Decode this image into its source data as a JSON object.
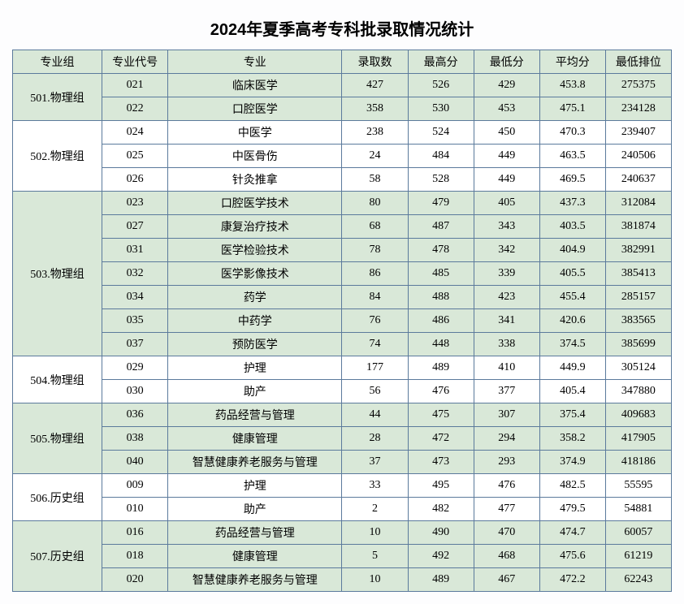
{
  "title": "2024年夏季高考专科批录取情况统计",
  "headers": [
    "专业组",
    "专业代号",
    "专业",
    "录取数",
    "最高分",
    "最低分",
    "平均分",
    "最低排位"
  ],
  "colors": {
    "header_bg": "#d9e8d8",
    "border": "#5b7a9c",
    "row_green": "#d9e8d8",
    "row_white": "#ffffff"
  },
  "groups": [
    {
      "name": "501.物理组",
      "rows": [
        {
          "code": "021",
          "major": "临床医学",
          "count": 427,
          "max": 526,
          "min": 429,
          "avg": "453.8",
          "rank": 275375,
          "bg": "green"
        },
        {
          "code": "022",
          "major": "口腔医学",
          "count": 358,
          "max": 530,
          "min": 453,
          "avg": "475.1",
          "rank": 234128,
          "bg": "green"
        }
      ]
    },
    {
      "name": "502.物理组",
      "rows": [
        {
          "code": "024",
          "major": "中医学",
          "count": 238,
          "max": 524,
          "min": 450,
          "avg": "470.3",
          "rank": 239407,
          "bg": "white"
        },
        {
          "code": "025",
          "major": "中医骨伤",
          "count": 24,
          "max": 484,
          "min": 449,
          "avg": "463.5",
          "rank": 240506,
          "bg": "white"
        },
        {
          "code": "026",
          "major": "针灸推拿",
          "count": 58,
          "max": 528,
          "min": 449,
          "avg": "469.5",
          "rank": 240637,
          "bg": "white"
        }
      ]
    },
    {
      "name": "503.物理组",
      "rows": [
        {
          "code": "023",
          "major": "口腔医学技术",
          "count": 80,
          "max": 479,
          "min": 405,
          "avg": "437.3",
          "rank": 312084,
          "bg": "green"
        },
        {
          "code": "027",
          "major": "康复治疗技术",
          "count": 68,
          "max": 487,
          "min": 343,
          "avg": "403.5",
          "rank": 381874,
          "bg": "green"
        },
        {
          "code": "031",
          "major": "医学检验技术",
          "count": 78,
          "max": 478,
          "min": 342,
          "avg": "404.9",
          "rank": 382991,
          "bg": "green"
        },
        {
          "code": "032",
          "major": "医学影像技术",
          "count": 86,
          "max": 485,
          "min": 339,
          "avg": "405.5",
          "rank": 385413,
          "bg": "green"
        },
        {
          "code": "034",
          "major": "药学",
          "count": 84,
          "max": 488,
          "min": 423,
          "avg": "455.4",
          "rank": 285157,
          "bg": "green"
        },
        {
          "code": "035",
          "major": "中药学",
          "count": 76,
          "max": 486,
          "min": 341,
          "avg": "420.6",
          "rank": 383565,
          "bg": "green"
        },
        {
          "code": "037",
          "major": "预防医学",
          "count": 74,
          "max": 448,
          "min": 338,
          "avg": "374.5",
          "rank": 385699,
          "bg": "green"
        }
      ]
    },
    {
      "name": "504.物理组",
      "rows": [
        {
          "code": "029",
          "major": "护理",
          "count": 177,
          "max": 489,
          "min": 410,
          "avg": "449.9",
          "rank": 305124,
          "bg": "white"
        },
        {
          "code": "030",
          "major": "助产",
          "count": 56,
          "max": 476,
          "min": 377,
          "avg": "405.4",
          "rank": 347880,
          "bg": "white"
        }
      ]
    },
    {
      "name": "505.物理组",
      "rows": [
        {
          "code": "036",
          "major": "药品经营与管理",
          "count": 44,
          "max": 475,
          "min": 307,
          "avg": "375.4",
          "rank": 409683,
          "bg": "green"
        },
        {
          "code": "038",
          "major": "健康管理",
          "count": 28,
          "max": 472,
          "min": 294,
          "avg": "358.2",
          "rank": 417905,
          "bg": "green"
        },
        {
          "code": "040",
          "major": "智慧健康养老服务与管理",
          "count": 37,
          "max": 473,
          "min": 293,
          "avg": "374.9",
          "rank": 418186,
          "bg": "green"
        }
      ]
    },
    {
      "name": "506.历史组",
      "rows": [
        {
          "code": "009",
          "major": "护理",
          "count": 33,
          "max": 495,
          "min": 476,
          "avg": "482.5",
          "rank": 55595,
          "bg": "white"
        },
        {
          "code": "010",
          "major": "助产",
          "count": 2,
          "max": 482,
          "min": 477,
          "avg": "479.5",
          "rank": 54881,
          "bg": "white"
        }
      ]
    },
    {
      "name": "507.历史组",
      "rows": [
        {
          "code": "016",
          "major": "药品经营与管理",
          "count": 10,
          "max": 490,
          "min": 470,
          "avg": "474.7",
          "rank": 60057,
          "bg": "green"
        },
        {
          "code": "018",
          "major": "健康管理",
          "count": 5,
          "max": 492,
          "min": 468,
          "avg": "475.6",
          "rank": 61219,
          "bg": "green"
        },
        {
          "code": "020",
          "major": "智慧健康养老服务与管理",
          "count": 10,
          "max": 489,
          "min": 467,
          "avg": "472.2",
          "rank": 62243,
          "bg": "green"
        }
      ]
    }
  ]
}
